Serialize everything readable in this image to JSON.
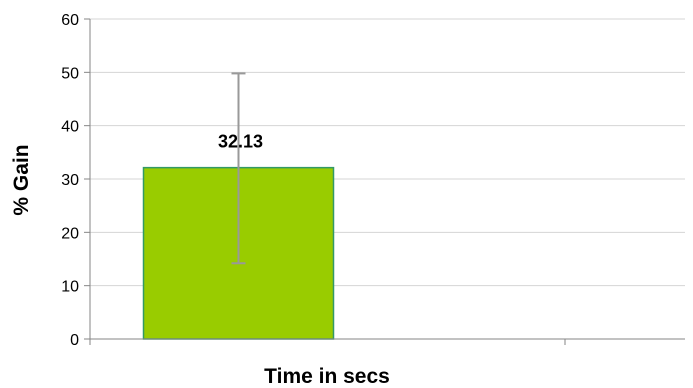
{
  "chart_data": {
    "type": "bar",
    "categories": [
      ""
    ],
    "values": [
      32.13
    ],
    "error": {
      "lower": [
        14.2
      ],
      "upper": [
        49.8
      ]
    },
    "data_labels": [
      "32.13"
    ],
    "xlabel": "Time in secs",
    "ylabel": "% Gain",
    "ylim": [
      0,
      60
    ],
    "yticks": [
      0,
      10,
      20,
      30,
      40,
      50,
      60
    ],
    "ytick_labels": [
      "0",
      "10",
      "20",
      "30",
      "40",
      "50",
      "60"
    ],
    "grid": true,
    "legend": "none",
    "colors": {
      "bar_fill": "#99cc00",
      "bar_border": "#339966",
      "error_bar": "#999999",
      "grid": "#d4d4d4",
      "axis": "#868686"
    }
  }
}
